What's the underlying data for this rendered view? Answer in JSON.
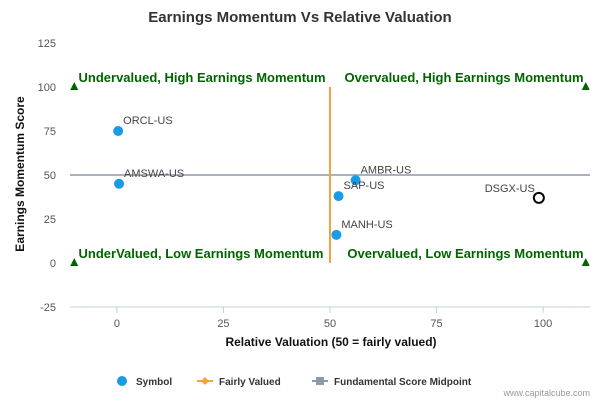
{
  "chart_data": {
    "type": "scatter",
    "title": "Earnings Momentum Vs Relative Valuation",
    "xlabel": "Relative Valuation (50 = fairly valued)",
    "ylabel": "Earnings Momentum Score",
    "xlim": [
      -11,
      111
    ],
    "ylim": [
      -25,
      125
    ],
    "x_ticks": [
      0,
      25,
      50,
      75,
      100
    ],
    "y_ticks": [
      -25,
      0,
      25,
      50,
      75,
      100,
      125
    ],
    "grid": false,
    "points": [
      {
        "label": "ORCL-US",
        "x": 0.3,
        "y": 75
      },
      {
        "label": "AMSWA-US",
        "x": 0.5,
        "y": 45
      },
      {
        "label": "AMBR-US",
        "x": 56,
        "y": 47
      },
      {
        "label": "SAP-US",
        "x": 52,
        "y": 38
      },
      {
        "label": "MANH-US",
        "x": 51.5,
        "y": 16
      },
      {
        "label": "DSGX-US",
        "x": 99,
        "y": 37,
        "highlight": true
      }
    ],
    "fairly_valued_x": 50,
    "fairly_valued_y_range": [
      0,
      100
    ],
    "midpoint_y": 50,
    "quadrant_labels": {
      "top_left": "Undervalued, High Earnings Momentum",
      "top_right": "Overvalued, High Earnings Momentum",
      "bottom_left": "UnderValued, Low Earnings Momentum",
      "bottom_right": "Overvalued, Low Earnings Momentum"
    },
    "legend": {
      "placement": "bottom",
      "items": [
        {
          "label": "Symbol",
          "color": "#1a9be6"
        },
        {
          "label": "Fairly Valued",
          "color": "#f2a33a"
        },
        {
          "label": "Fundamental Score Midpoint",
          "color": "#8e99aa"
        }
      ]
    },
    "colors": {
      "point": "#1a9be6",
      "highlight_stroke": "#000000",
      "fairly_valued": "#f2a33a",
      "midpoint": "#8e99aa",
      "quadrant_text": "#006400",
      "marker": "#006400",
      "axis": "#c0d0e0"
    }
  },
  "credit": "www.capitalcube.com"
}
